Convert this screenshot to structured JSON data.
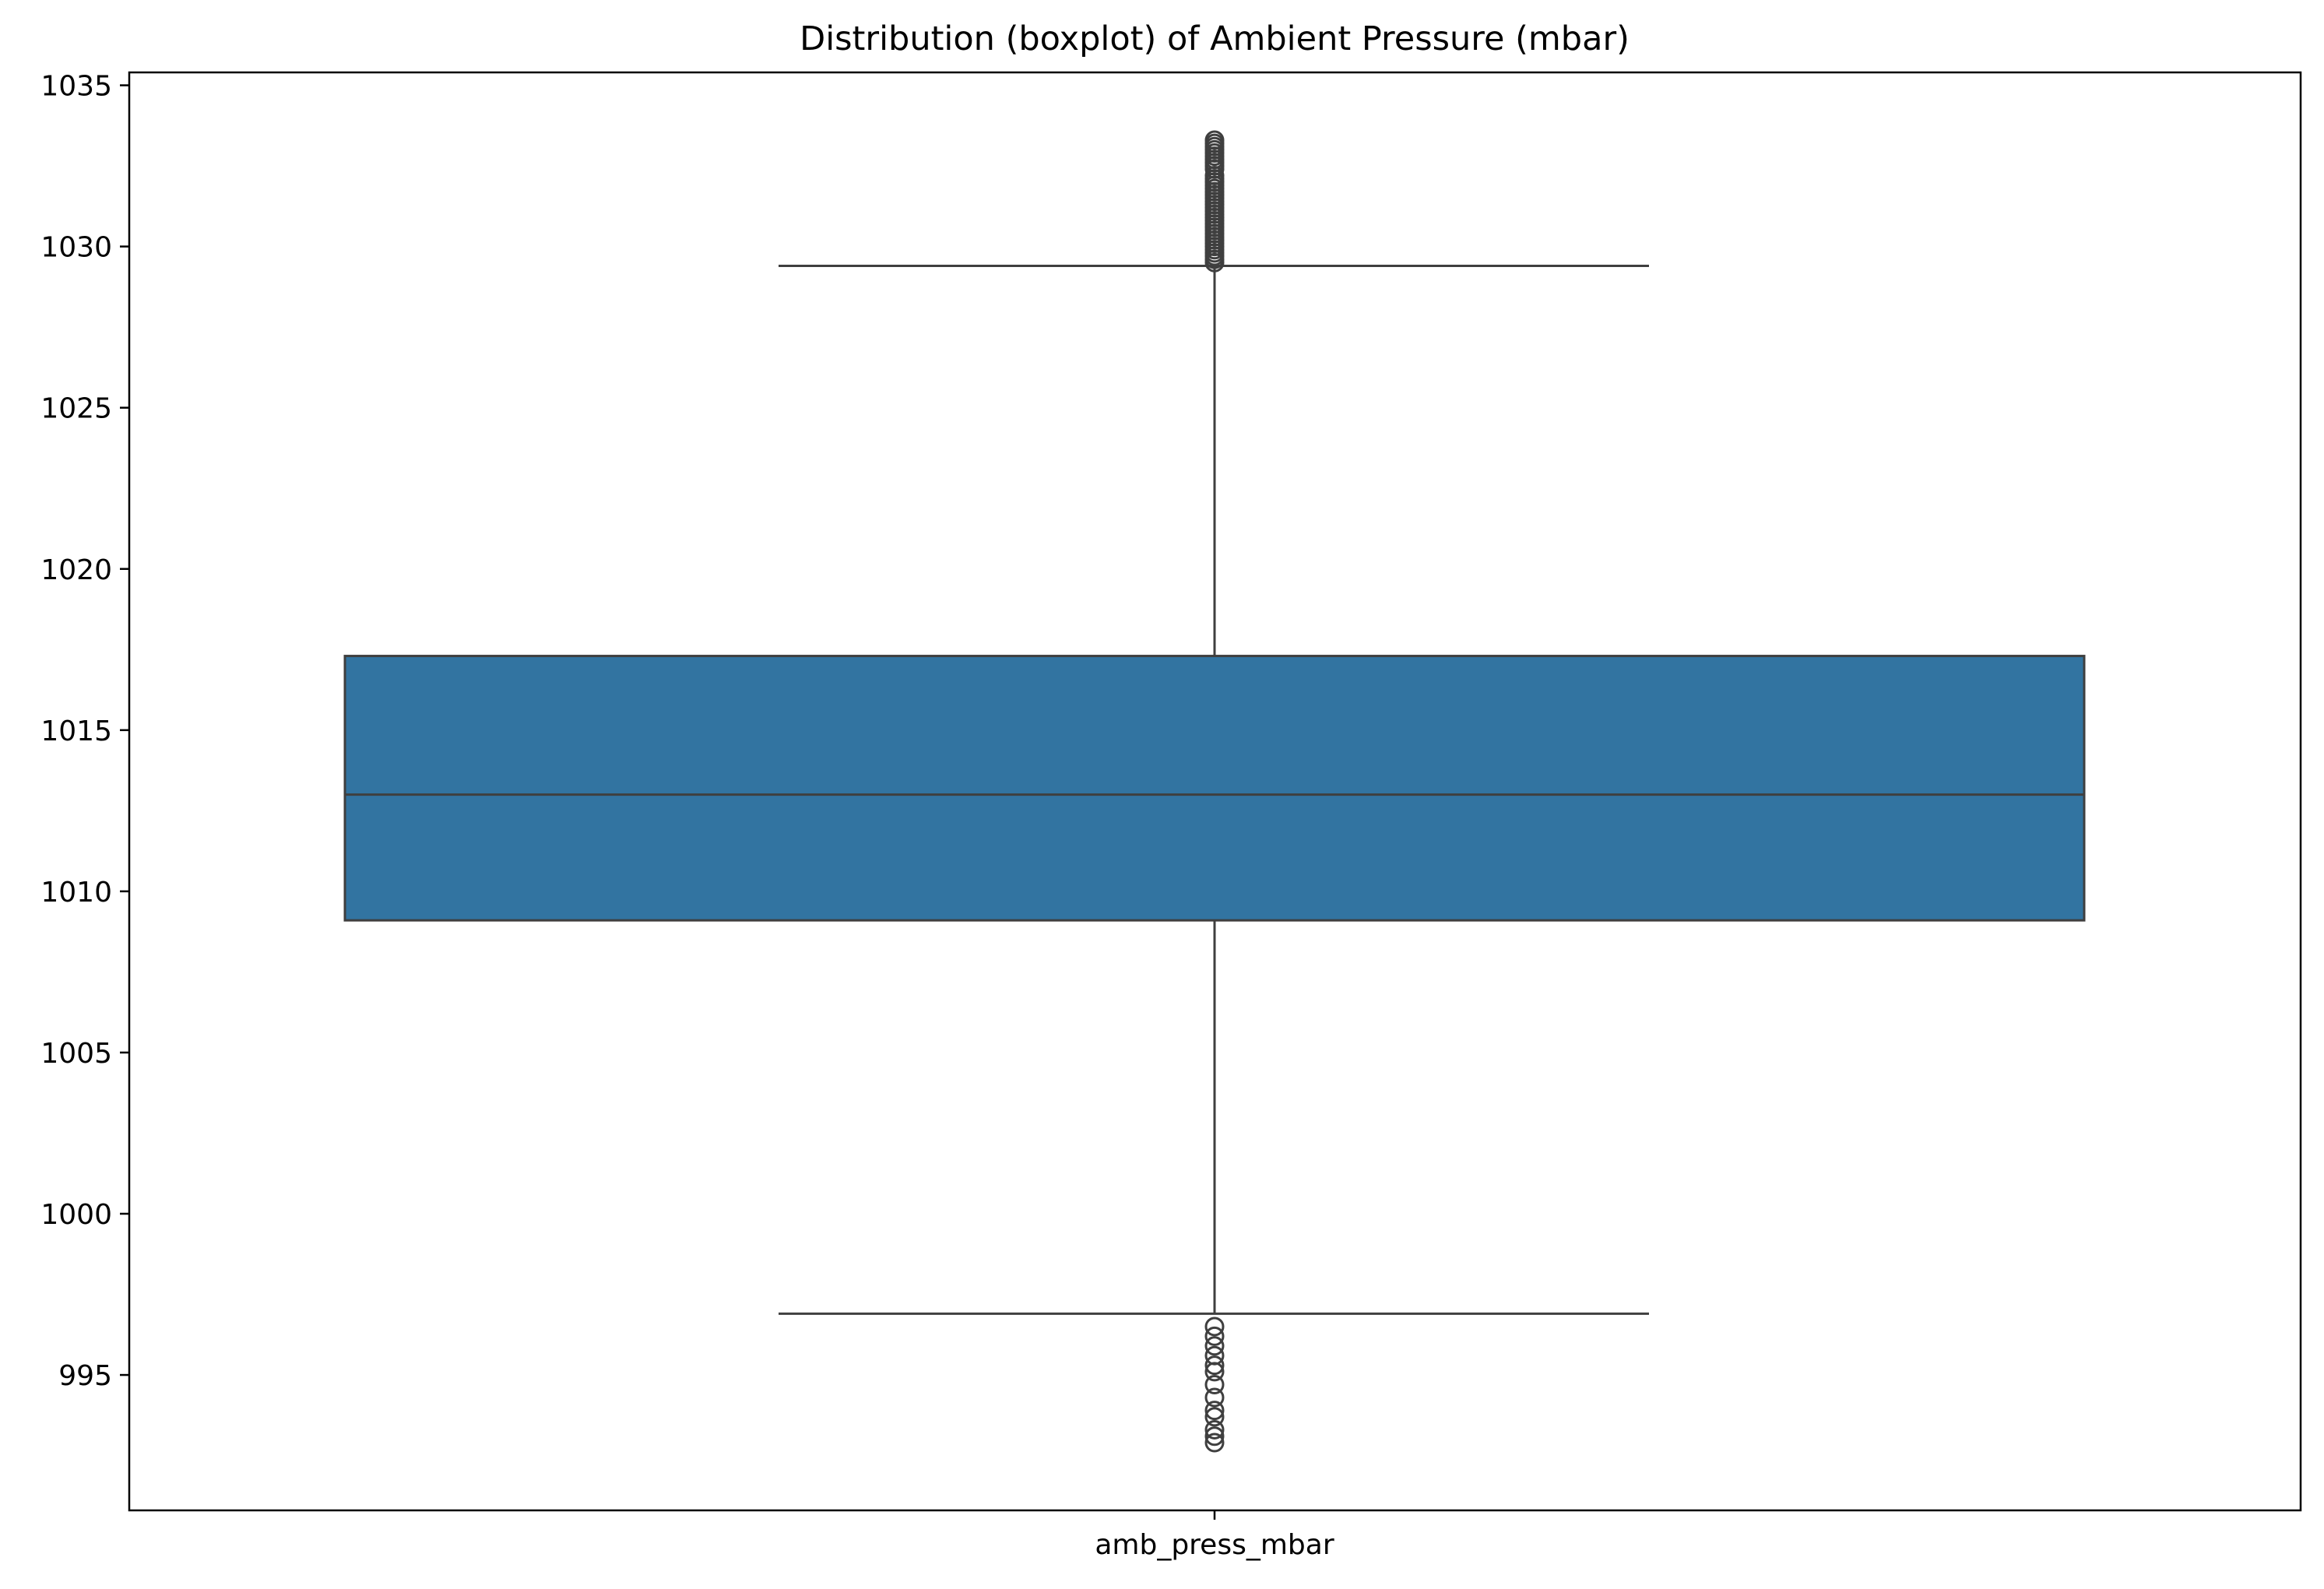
{
  "chart_data": {
    "type": "boxplot",
    "title": "Distribution (boxplot) of Ambient Pressure (mbar)",
    "xlabel": "",
    "ylabel": "",
    "categories": [
      "amb_press_mbar"
    ],
    "ylim": [
      990.8,
      1035.4
    ],
    "yticks": [
      995,
      1000,
      1005,
      1010,
      1015,
      1020,
      1025,
      1030,
      1035
    ],
    "grid": false,
    "legend": "none",
    "box": {
      "whisker_low": 996.9,
      "q1": 1009.1,
      "median": 1013.0,
      "q3": 1017.3,
      "whisker_high": 1029.4
    },
    "outliers_high": [
      1029.5,
      1029.6,
      1029.7,
      1029.8,
      1029.9,
      1030.0,
      1030.1,
      1030.2,
      1030.3,
      1030.4,
      1030.5,
      1030.6,
      1030.7,
      1030.8,
      1030.9,
      1031.0,
      1031.1,
      1031.2,
      1031.3,
      1031.4,
      1031.5,
      1031.6,
      1031.7,
      1031.8,
      1031.9,
      1032.0,
      1032.1,
      1032.2,
      1032.4,
      1032.5,
      1032.6,
      1032.7,
      1032.8,
      1032.9,
      1033.0,
      1033.1,
      1033.2,
      1033.3
    ],
    "outliers_low": [
      996.5,
      996.2,
      995.9,
      995.6,
      995.3,
      995.1,
      994.7,
      994.3,
      993.9,
      993.7,
      993.3,
      993.1,
      992.9
    ],
    "colors": {
      "box_fill": "#3274a1",
      "line": "#3f3f3f",
      "axes": "#000000"
    }
  }
}
